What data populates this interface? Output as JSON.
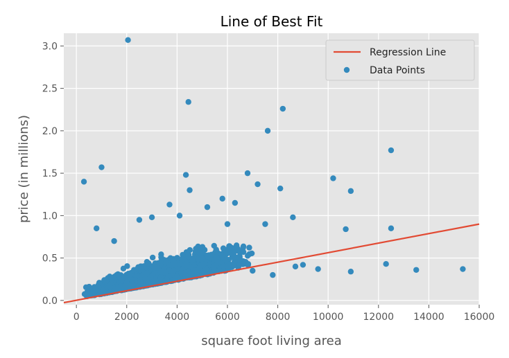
{
  "chart_data": {
    "type": "scatter",
    "title": "Line of Best Fit",
    "xlabel": "square foot living area",
    "ylabel": "price (in millions)",
    "xlim": [
      -500,
      16000
    ],
    "ylim": [
      -0.05,
      3.15
    ],
    "x_ticks": [
      0,
      2000,
      4000,
      6000,
      8000,
      10000,
      12000,
      14000,
      16000
    ],
    "x_tick_labels": [
      "0",
      "2000",
      "4000",
      "6000",
      "8000",
      "10000",
      "12000",
      "14000",
      "16000"
    ],
    "y_ticks": [
      0.0,
      0.5,
      1.0,
      1.5,
      2.0,
      2.5,
      3.0
    ],
    "y_tick_labels": [
      "0.0",
      "0.5",
      "1.0",
      "1.5",
      "2.0",
      "2.5",
      "3.0"
    ],
    "grid": true,
    "legend_position": "top-right",
    "colors": {
      "background": "#e5e5e5",
      "grid": "#ffffff",
      "points": "#348abd",
      "line": "#e24a33",
      "text": "#555555",
      "title": "#000000"
    },
    "series": [
      {
        "name": "Regression Line",
        "kind": "line",
        "x": [
          -500,
          16000
        ],
        "y": [
          -0.026,
          0.9
        ]
      },
      {
        "name": "Data Points",
        "kind": "scatter",
        "x": [
          2050,
          4450,
          8200,
          7600,
          12500,
          1000,
          300,
          10200,
          10900,
          4350,
          4500,
          6800,
          5800,
          3700,
          9600,
          12300,
          13500,
          15350,
          10900,
          10700,
          12500,
          7200,
          8100,
          4100,
          6300,
          1500,
          9000,
          8600,
          7500,
          800,
          3000,
          2500,
          5200,
          6000,
          7000,
          7800,
          8700
        ],
        "y": [
          3.07,
          2.34,
          2.26,
          2.0,
          1.77,
          1.57,
          1.4,
          1.44,
          1.29,
          1.48,
          1.3,
          1.5,
          1.2,
          1.13,
          0.37,
          0.43,
          0.36,
          0.37,
          0.34,
          0.84,
          0.85,
          1.37,
          1.32,
          1.0,
          1.15,
          0.7,
          0.42,
          0.98,
          0.9,
          0.85,
          0.98,
          0.95,
          1.1,
          0.9,
          0.35,
          0.3,
          0.4
        ]
      }
    ]
  }
}
